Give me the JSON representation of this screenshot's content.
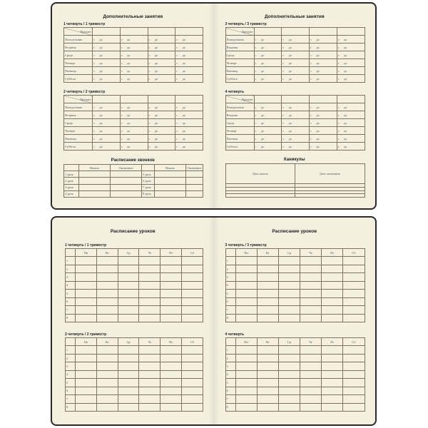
{
  "top": {
    "left": {
      "title": "Дополнительные занятия",
      "sections": [
        {
          "label": "1 четверть  /  1 триместр"
        },
        {
          "label": "2 четверть  /  2 триместр"
        }
      ],
      "bells": {
        "title": "Расписание звонков",
        "headers": [
          "",
          "Начало",
          "Окончание",
          "",
          "Начало",
          "Окончание"
        ],
        "rows": [
          [
            "1 урок",
            "5 урок"
          ],
          [
            "2 урок",
            "6 урок"
          ],
          [
            "3 урок",
            "7 урок"
          ],
          [
            "4 урок",
            "8 урок"
          ]
        ]
      }
    },
    "right": {
      "title": "Дополнительные занятия",
      "sections": [
        {
          "label": "3 четверть  /  3 триместр"
        },
        {
          "label": "4 четверть"
        }
      ],
      "holidays": {
        "title": "Каникулы",
        "headers": [
          "Дата начала",
          "Дата окончания"
        ],
        "row_count": 4
      }
    },
    "subject_header": "Предмет",
    "days": [
      "Понедельник",
      "Вторник",
      "Среда",
      "Четверг",
      "Пятница",
      "Суббота"
    ],
    "from": "с",
    "to": "до"
  },
  "bottom": {
    "left": {
      "title": "Расписание уроков",
      "sections": [
        {
          "label": "1 четверть  /  1 триместр"
        },
        {
          "label": "2 четверть  /  2 триместр"
        }
      ]
    },
    "right": {
      "title": "Расписание уроков",
      "sections": [
        {
          "label": "3 четверть  /  3 триместр"
        },
        {
          "label": "4 четверть"
        }
      ]
    },
    "weekdays": [
      "Пн",
      "Вт",
      "Ср",
      "Чт",
      "Пт",
      "Сб"
    ],
    "lessons": [
      "1",
      "2",
      "3",
      "4",
      "5",
      "6",
      "7",
      "8"
    ]
  }
}
